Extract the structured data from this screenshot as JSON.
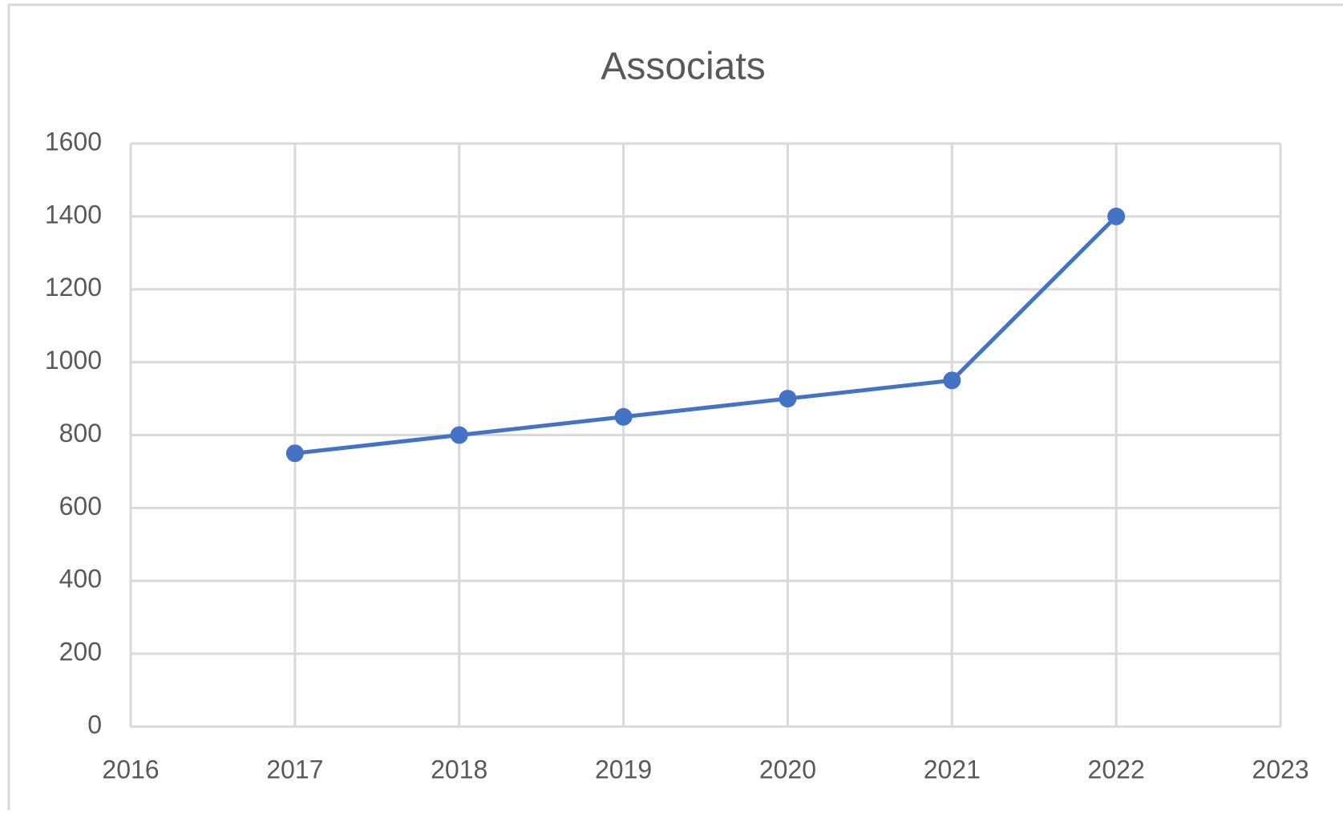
{
  "chart_data": {
    "type": "line",
    "title": "Associats",
    "x": [
      2017,
      2018,
      2019,
      2020,
      2021,
      2022
    ],
    "series": [
      {
        "name": "Associats",
        "color": "#4472c4",
        "values": [
          750,
          800,
          850,
          900,
          950,
          1400
        ]
      }
    ],
    "xlim": [
      2016,
      2023
    ],
    "xticks": [
      2016,
      2017,
      2018,
      2019,
      2020,
      2021,
      2022,
      2023
    ],
    "ylim": [
      0,
      1600
    ],
    "yticks": [
      0,
      200,
      400,
      600,
      800,
      1000,
      1200,
      1400,
      1600
    ],
    "grid": true,
    "markers": true
  }
}
